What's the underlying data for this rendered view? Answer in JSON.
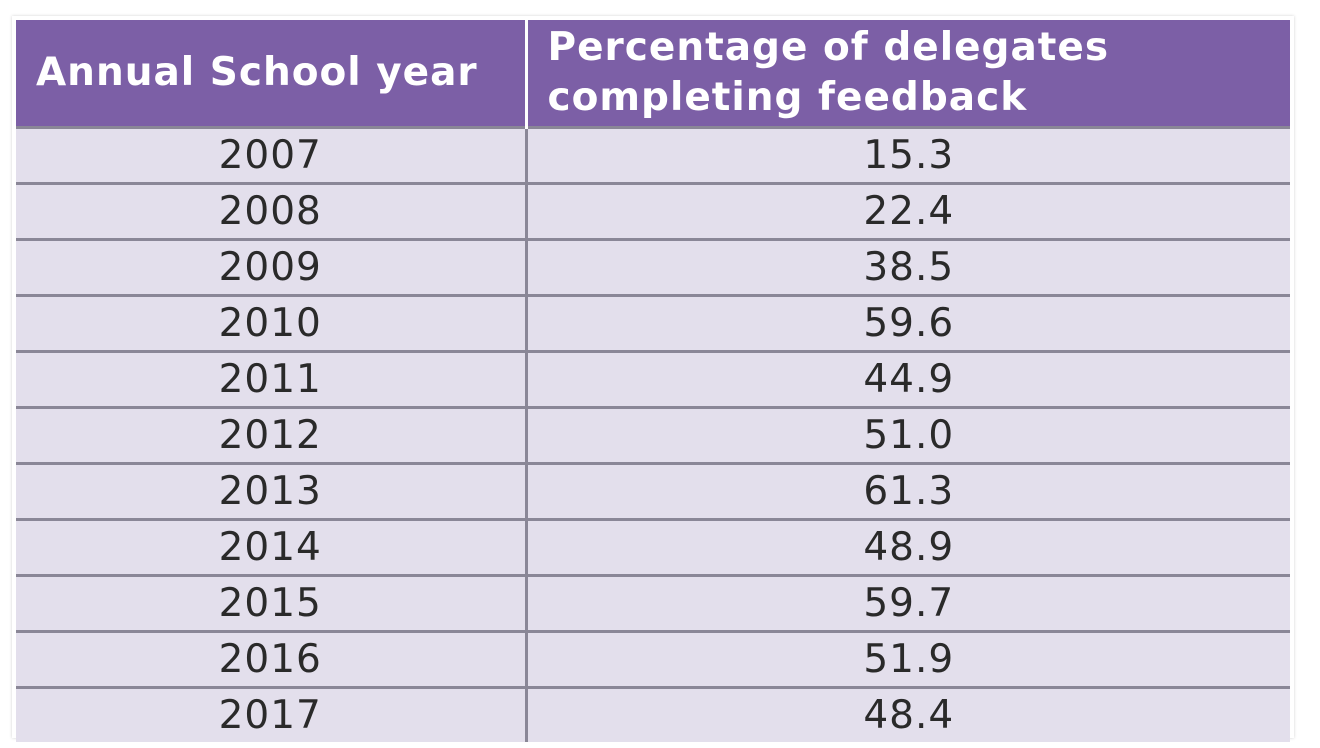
{
  "colors": {
    "header_bg": "#7c5fa6",
    "cell_bg": "#e3dfec",
    "grid": "#8a8797"
  },
  "table": {
    "headers": [
      "Annual School year",
      "Percentage of delegates completing feedback"
    ],
    "rows": [
      [
        "2007",
        "15.3"
      ],
      [
        "2008",
        "22.4"
      ],
      [
        "2009",
        "38.5"
      ],
      [
        "2010",
        "59.6"
      ],
      [
        "2011",
        "44.9"
      ],
      [
        "2012",
        "51.0"
      ],
      [
        "2013",
        "61.3"
      ],
      [
        "2014",
        "48.9"
      ],
      [
        "2015",
        "59.7"
      ],
      [
        "2016",
        "51.9"
      ],
      [
        "2017",
        "48.4"
      ]
    ]
  }
}
